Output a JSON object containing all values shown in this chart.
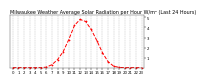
{
  "title": "Milwaukee Weather Average Solar Radiation per Hour W/m² (Last 24 Hours)",
  "hours": [
    0,
    1,
    2,
    3,
    4,
    5,
    6,
    7,
    8,
    9,
    10,
    11,
    12,
    13,
    14,
    15,
    16,
    17,
    18,
    19,
    20,
    21,
    22,
    23
  ],
  "values": [
    0,
    0,
    0,
    0,
    0,
    0,
    5,
    30,
    80,
    160,
    280,
    420,
    480,
    460,
    380,
    270,
    150,
    60,
    15,
    2,
    0,
    0,
    0,
    0
  ],
  "line_color": "#ff0000",
  "bg_color": "#ffffff",
  "grid_color": "#888888",
  "ylim": [
    0,
    520
  ],
  "ytick_values": [
    100,
    200,
    300,
    400,
    500
  ],
  "ytick_labels": [
    "1",
    "2",
    "3",
    "4",
    "5"
  ],
  "xticks": [
    0,
    1,
    2,
    3,
    4,
    5,
    6,
    7,
    8,
    9,
    10,
    11,
    12,
    13,
    14,
    15,
    16,
    17,
    18,
    19,
    20,
    21,
    22,
    23
  ],
  "title_fontsize": 3.5,
  "tick_fontsize": 2.8,
  "line_width": 0.7,
  "marker_size": 0.9
}
